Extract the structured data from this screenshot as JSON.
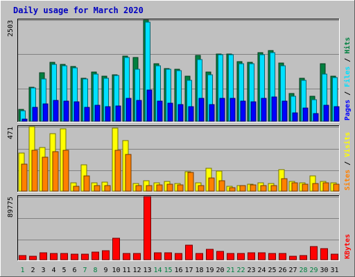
{
  "chart_data": {
    "type": "bar",
    "title": "Daily usage for March 2020",
    "x": [
      1,
      2,
      3,
      4,
      5,
      6,
      7,
      8,
      9,
      10,
      11,
      12,
      13,
      14,
      15,
      16,
      17,
      18,
      19,
      20,
      21,
      22,
      23,
      24,
      25,
      26,
      27,
      28,
      29,
      30,
      31
    ],
    "weekend_days": [
      1,
      7,
      8,
      14,
      15,
      21,
      22,
      28,
      29
    ],
    "panels": [
      {
        "name": "hits-files-pages",
        "ymax_label": "2503",
        "ylim": [
          0,
          2503
        ],
        "right_labels": [
          "Pages",
          "Files",
          "Hits"
        ],
        "series": [
          {
            "name": "Hits",
            "color": "#008040",
            "values": [
              290,
              840,
              1200,
              1450,
              1410,
              1360,
              1060,
              1210,
              1110,
              1150,
              1610,
              1570,
              2503,
              1430,
              1310,
              1280,
              1110,
              1630,
              1220,
              1670,
              1670,
              1470,
              1450,
              1700,
              1750,
              1440,
              680,
              1060,
              620,
              1430,
              1110
            ]
          },
          {
            "name": "Files",
            "color": "#00e0ff",
            "values": [
              260,
              820,
              1050,
              1400,
              1380,
              1320,
              1050,
              1160,
              1060,
              1140,
              1570,
              1290,
              2460,
              1370,
              1290,
              1250,
              1010,
              1530,
              1150,
              1640,
              1640,
              1420,
              1430,
              1640,
              1700,
              1370,
              620,
              1010,
              540,
              1170,
              1080
            ]
          },
          {
            "name": "Pages",
            "color": "#0000ff",
            "values": [
              60,
              340,
              430,
              520,
              500,
              480,
              340,
              390,
              360,
              380,
              560,
              520,
              780,
              500,
              440,
              420,
              360,
              560,
              410,
              570,
              570,
              490,
              480,
              570,
              600,
              490,
              210,
              330,
              190,
              400,
              360
            ]
          }
        ]
      },
      {
        "name": "visits-sites",
        "ymax_label": "471",
        "ylim": [
          0,
          471
        ],
        "right_labels": [
          "Sites",
          "Visits"
        ],
        "series": [
          {
            "name": "Visits",
            "color": "#ffff00",
            "values": [
              280,
              471,
              320,
              420,
              455,
              60,
              190,
              60,
              65,
              460,
              370,
              55,
              75,
              60,
              70,
              55,
              140,
              60,
              165,
              145,
              35,
              40,
              50,
              60,
              55,
              155,
              70,
              60,
              110,
              70,
              60
            ]
          },
          {
            "name": "Sites",
            "color": "#ff8000",
            "values": [
              200,
              300,
              250,
              290,
              300,
              35,
              110,
              40,
              40,
              300,
              270,
              40,
              40,
              45,
              50,
              45,
              135,
              40,
              95,
              75,
              25,
              40,
              45,
              40,
              40,
              90,
              60,
              50,
              55,
              60,
              50
            ]
          }
        ]
      },
      {
        "name": "kbytes",
        "ymax_label": "89775",
        "ylim": [
          0,
          89775
        ],
        "right_labels": [
          "KBytes"
        ],
        "series": [
          {
            "name": "KBytes",
            "color": "#ff0000",
            "values": [
              6000,
              5000,
              9500,
              9000,
              8500,
              8200,
              8000,
              10500,
              12500,
              31000,
              9000,
              8500,
              89775,
              9500,
              10000,
              9000,
              21000,
              9000,
              15000,
              12000,
              9000,
              9000,
              9500,
              10000,
              9000,
              8500,
              5000,
              6000,
              19000,
              16000,
              8000
            ]
          }
        ]
      }
    ]
  }
}
